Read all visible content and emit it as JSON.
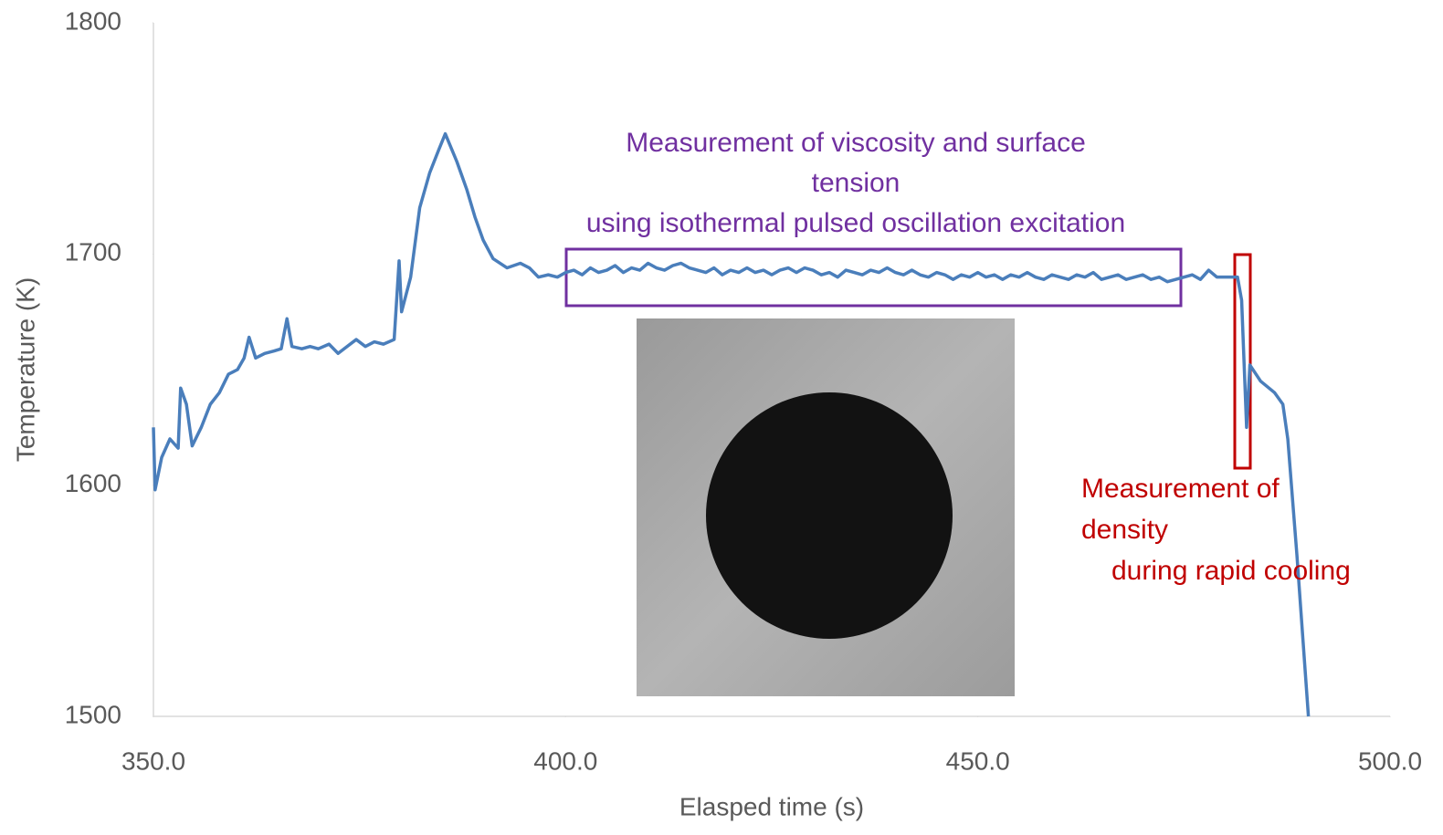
{
  "chart_data": {
    "type": "line",
    "x_label": "Elasped time (s)",
    "y_label": "Temperature (K)",
    "xlim": [
      350,
      500
    ],
    "ylim": [
      1500,
      1800
    ],
    "xticks": [
      {
        "value": 350,
        "label": "350.0"
      },
      {
        "value": 400,
        "label": "400.0"
      },
      {
        "value": 450,
        "label": "450.0"
      },
      {
        "value": 500,
        "label": "500.0"
      }
    ],
    "yticks": [
      1500,
      1600,
      1700,
      1800
    ],
    "grid": false,
    "series": [
      {
        "color": "#4a7ebb",
        "x": [
          350,
          350.2,
          351,
          352,
          353,
          353.3,
          354,
          354.7,
          355.8,
          356.9,
          358,
          359.1,
          360.2,
          361,
          361.6,
          362.4,
          363.5,
          364.6,
          365.5,
          366.2,
          366.8,
          368,
          369,
          370,
          371.3,
          372.4,
          373.5,
          374.6,
          375.7,
          376.8,
          377.9,
          379.2,
          379.8,
          380.1,
          381.2,
          382.3,
          383.5,
          384.6,
          385.4,
          386.8,
          388,
          389,
          390,
          391.2,
          392.9,
          394.5,
          395.6,
          396.7,
          397.9,
          399,
          400,
          401,
          402,
          403,
          404,
          405,
          406,
          407,
          408,
          409,
          410,
          411,
          412,
          413,
          414,
          415,
          416,
          417,
          418,
          419,
          420,
          421,
          422,
          423,
          424,
          425,
          426,
          427,
          428,
          429,
          430,
          431,
          432,
          433,
          434,
          435,
          436,
          437,
          438,
          439,
          440,
          441,
          442,
          443,
          444,
          445,
          446,
          447,
          448,
          449,
          450,
          451,
          452,
          453,
          454,
          455,
          456,
          457,
          458,
          459,
          460,
          461,
          462,
          463,
          464,
          465,
          466,
          467,
          468,
          469,
          470,
          471,
          472,
          473,
          474,
          475,
          476,
          477,
          478,
          479,
          480,
          481.5,
          482,
          482.6,
          483,
          484.3,
          486,
          487,
          487.6,
          488.7,
          490.1
        ],
        "values": [
          1625,
          1598,
          1612,
          1620,
          1616,
          1642,
          1635,
          1617,
          1625,
          1635,
          1640,
          1648,
          1650,
          1655,
          1664,
          1655,
          1657,
          1658,
          1659,
          1672,
          1660,
          1659,
          1660,
          1659,
          1661,
          1657,
          1660,
          1663,
          1660,
          1662,
          1661,
          1663,
          1697,
          1675,
          1690,
          1720,
          1735,
          1745,
          1752,
          1740,
          1728,
          1716,
          1706,
          1698,
          1694,
          1696,
          1694,
          1690,
          1691,
          1690,
          1692,
          1693,
          1691,
          1694,
          1692,
          1693,
          1695,
          1692,
          1694,
          1693,
          1696,
          1694,
          1693,
          1695,
          1696,
          1694,
          1693,
          1692,
          1694,
          1691,
          1693,
          1692,
          1694,
          1692,
          1693,
          1691,
          1693,
          1694,
          1692,
          1694,
          1693,
          1691,
          1692,
          1690,
          1693,
          1692,
          1691,
          1693,
          1692,
          1694,
          1692,
          1691,
          1693,
          1691,
          1690,
          1692,
          1691,
          1689,
          1691,
          1690,
          1692,
          1690,
          1691,
          1689,
          1691,
          1690,
          1692,
          1690,
          1689,
          1691,
          1690,
          1689,
          1691,
          1690,
          1692,
          1689,
          1690,
          1691,
          1689,
          1690,
          1691,
          1689,
          1690,
          1688,
          1689,
          1690,
          1691,
          1689,
          1693,
          1690,
          1690,
          1690,
          1680,
          1625,
          1652,
          1645,
          1640,
          1635,
          1620,
          1570,
          1500
        ]
      }
    ],
    "annotations": [
      {
        "lines": [
          "Measurement of viscosity and surface",
          "tension",
          "using isothermal pulsed oscillation excitation"
        ],
        "color": "#7030a0"
      },
      {
        "lines": [
          "Measurement of",
          "density",
          "during rapid cooling"
        ],
        "color": "#c00000"
      }
    ]
  }
}
